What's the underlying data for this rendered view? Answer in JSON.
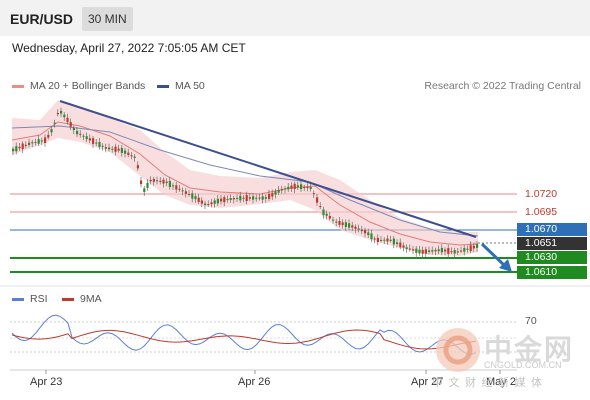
{
  "header": {
    "symbol": "EUR/USD",
    "timeframe": "30 MIN"
  },
  "datetime": "Wednesday, April 27, 2022 7:05:05 AM CET",
  "legend": {
    "ma20_bb": "MA 20 + Bollinger Bands",
    "ma50": "MA 50",
    "credit": "Research © 2022 Trading Central"
  },
  "rsi_legend": {
    "rsi": "RSI",
    "ma9": "9MA"
  },
  "levels": {
    "r1": "1.0720",
    "r2": "1.0695",
    "pivot": "1.0670",
    "current": "1.0651",
    "s1": "1.0630",
    "s2": "1.0610"
  },
  "rsi_level": "70",
  "x_axis": [
    "Apr 23",
    "Apr 26",
    "Apr 27",
    "May 2"
  ],
  "watermark": {
    "title": "中金网",
    "site": "CNGOLD.COM.CN",
    "tagline": "中 文 财 经 新 媒 体"
  },
  "colors": {
    "resistance": "#e88a8a",
    "pivot": "#2f6fb5",
    "support": "#1f8a1f",
    "current": "#333333",
    "ma50": "#3b4f8f",
    "bollinger": "#f6cdd0",
    "arrow": "#2f6fb5"
  },
  "chart_data": {
    "type": "candlestick",
    "price_levels": [
      1.072,
      1.0695,
      1.067,
      1.0651,
      1.063,
      1.061
    ],
    "rsi_levels": [
      70
    ],
    "x_ticks": [
      "Apr 23",
      "Apr 26",
      "Apr 27",
      "May 2"
    ]
  }
}
